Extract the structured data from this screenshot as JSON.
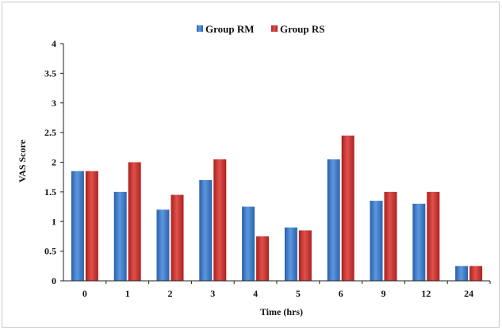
{
  "chart_data": {
    "type": "bar",
    "title": "",
    "xlabel": "Time (hrs)",
    "ylabel": "VAS Score",
    "categories": [
      "0",
      "1",
      "2",
      "3",
      "4",
      "5",
      "6",
      "9",
      "12",
      "24"
    ],
    "series": [
      {
        "name": "Group RM",
        "color": "#3a78c9",
        "values": [
          1.85,
          1.5,
          1.2,
          1.7,
          1.25,
          0.9,
          2.05,
          1.35,
          1.3,
          0.25
        ]
      },
      {
        "name": "Group RS",
        "color": "#c9302c",
        "values": [
          1.85,
          2.0,
          1.45,
          2.05,
          0.75,
          0.85,
          2.45,
          1.5,
          1.5,
          0.25
        ]
      }
    ],
    "ylim": [
      0,
      4
    ],
    "yticks": [
      "0",
      "0.5",
      "1",
      "1.5",
      "2",
      "2.5",
      "3",
      "3.5",
      "4"
    ],
    "grid": false,
    "legend": "top-center"
  }
}
